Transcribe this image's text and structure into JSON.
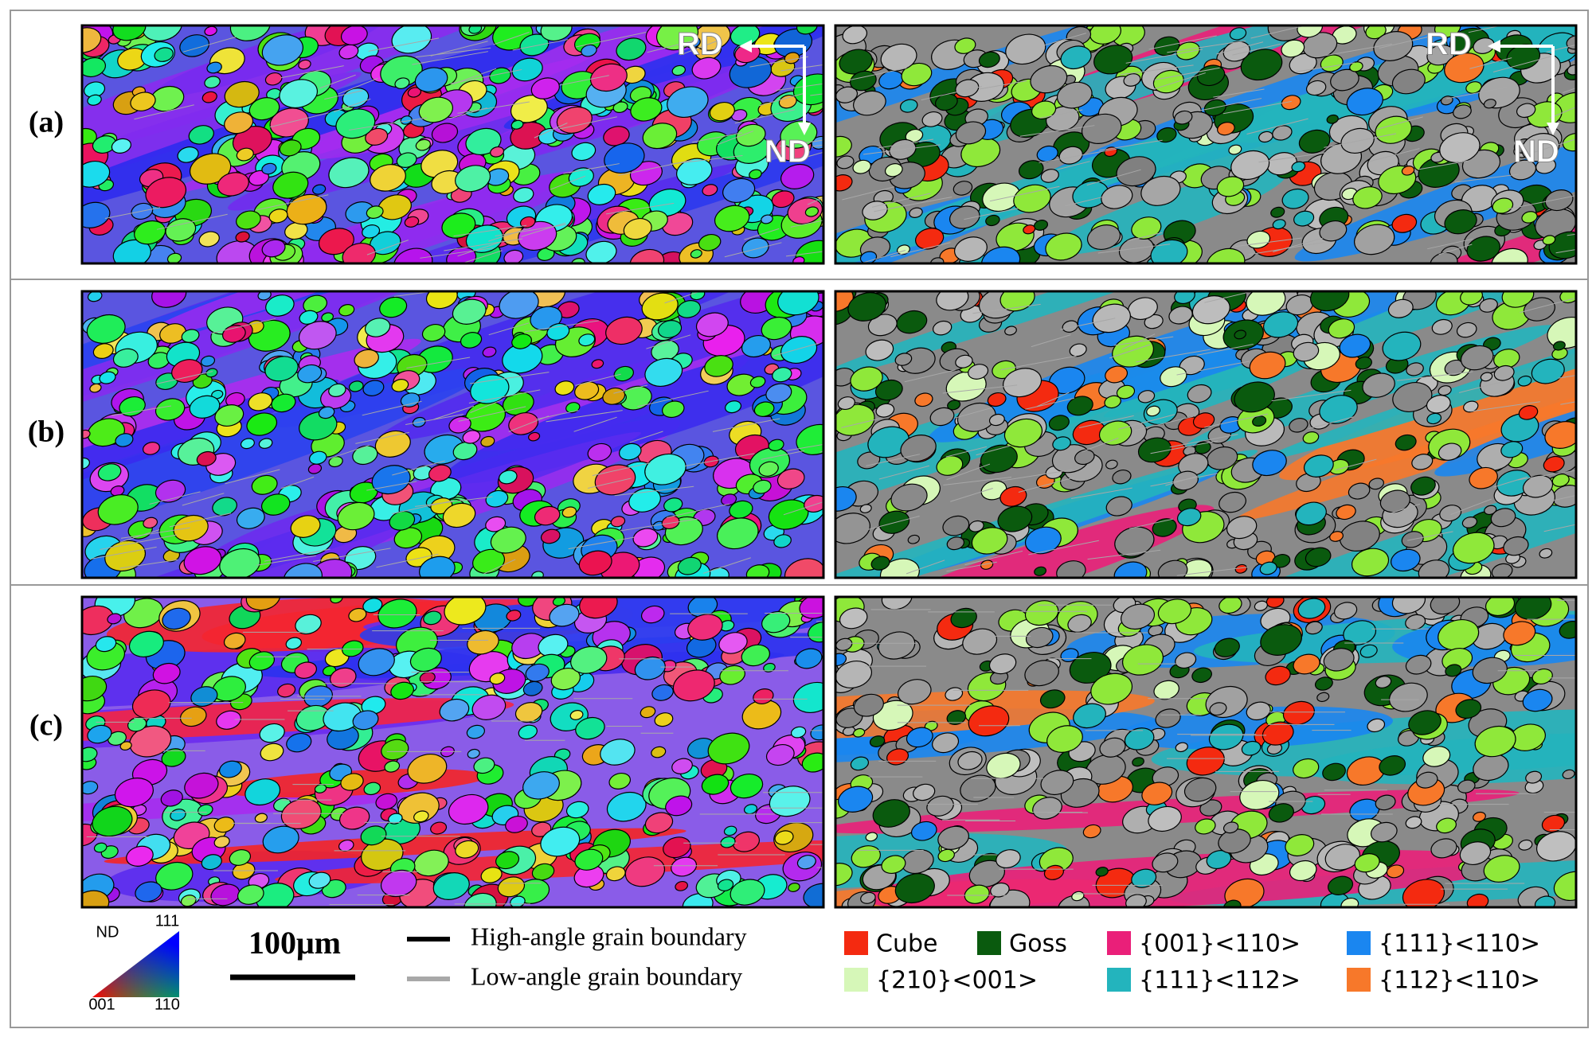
{
  "rows": [
    {
      "label": "(a)"
    },
    {
      "label": "(b)"
    },
    {
      "label": "(c)"
    }
  ],
  "orientation_axes": [
    {
      "rd": "RD",
      "nd": "ND"
    },
    {
      "rd": "RD",
      "nd": "ND"
    }
  ],
  "ipf_key": {
    "title": "ND",
    "corner_001": "001",
    "corner_110": "110",
    "corner_111": "111"
  },
  "scale_bar": "100μm",
  "boundaries": [
    {
      "label": "High-angle grain boundary",
      "color": "#000000"
    },
    {
      "label": "Low-angle grain boundary",
      "color": "#a8a8a8"
    }
  ],
  "texture_legend": [
    {
      "label": "Cube",
      "color": "#f42a10"
    },
    {
      "label": "Goss",
      "color": "#0a5a0e"
    },
    {
      "label": "{001}<110>",
      "color": "#ea1f79"
    },
    {
      "label": "{111}<110>",
      "color": "#1a86f0"
    },
    {
      "label": "{210}<001>",
      "color": "#d6f7b8"
    },
    {
      "label": "{111}<112>",
      "color": "#23b4bd"
    },
    {
      "label": "{112}<110>",
      "color": "#f7782a"
    }
  ]
}
